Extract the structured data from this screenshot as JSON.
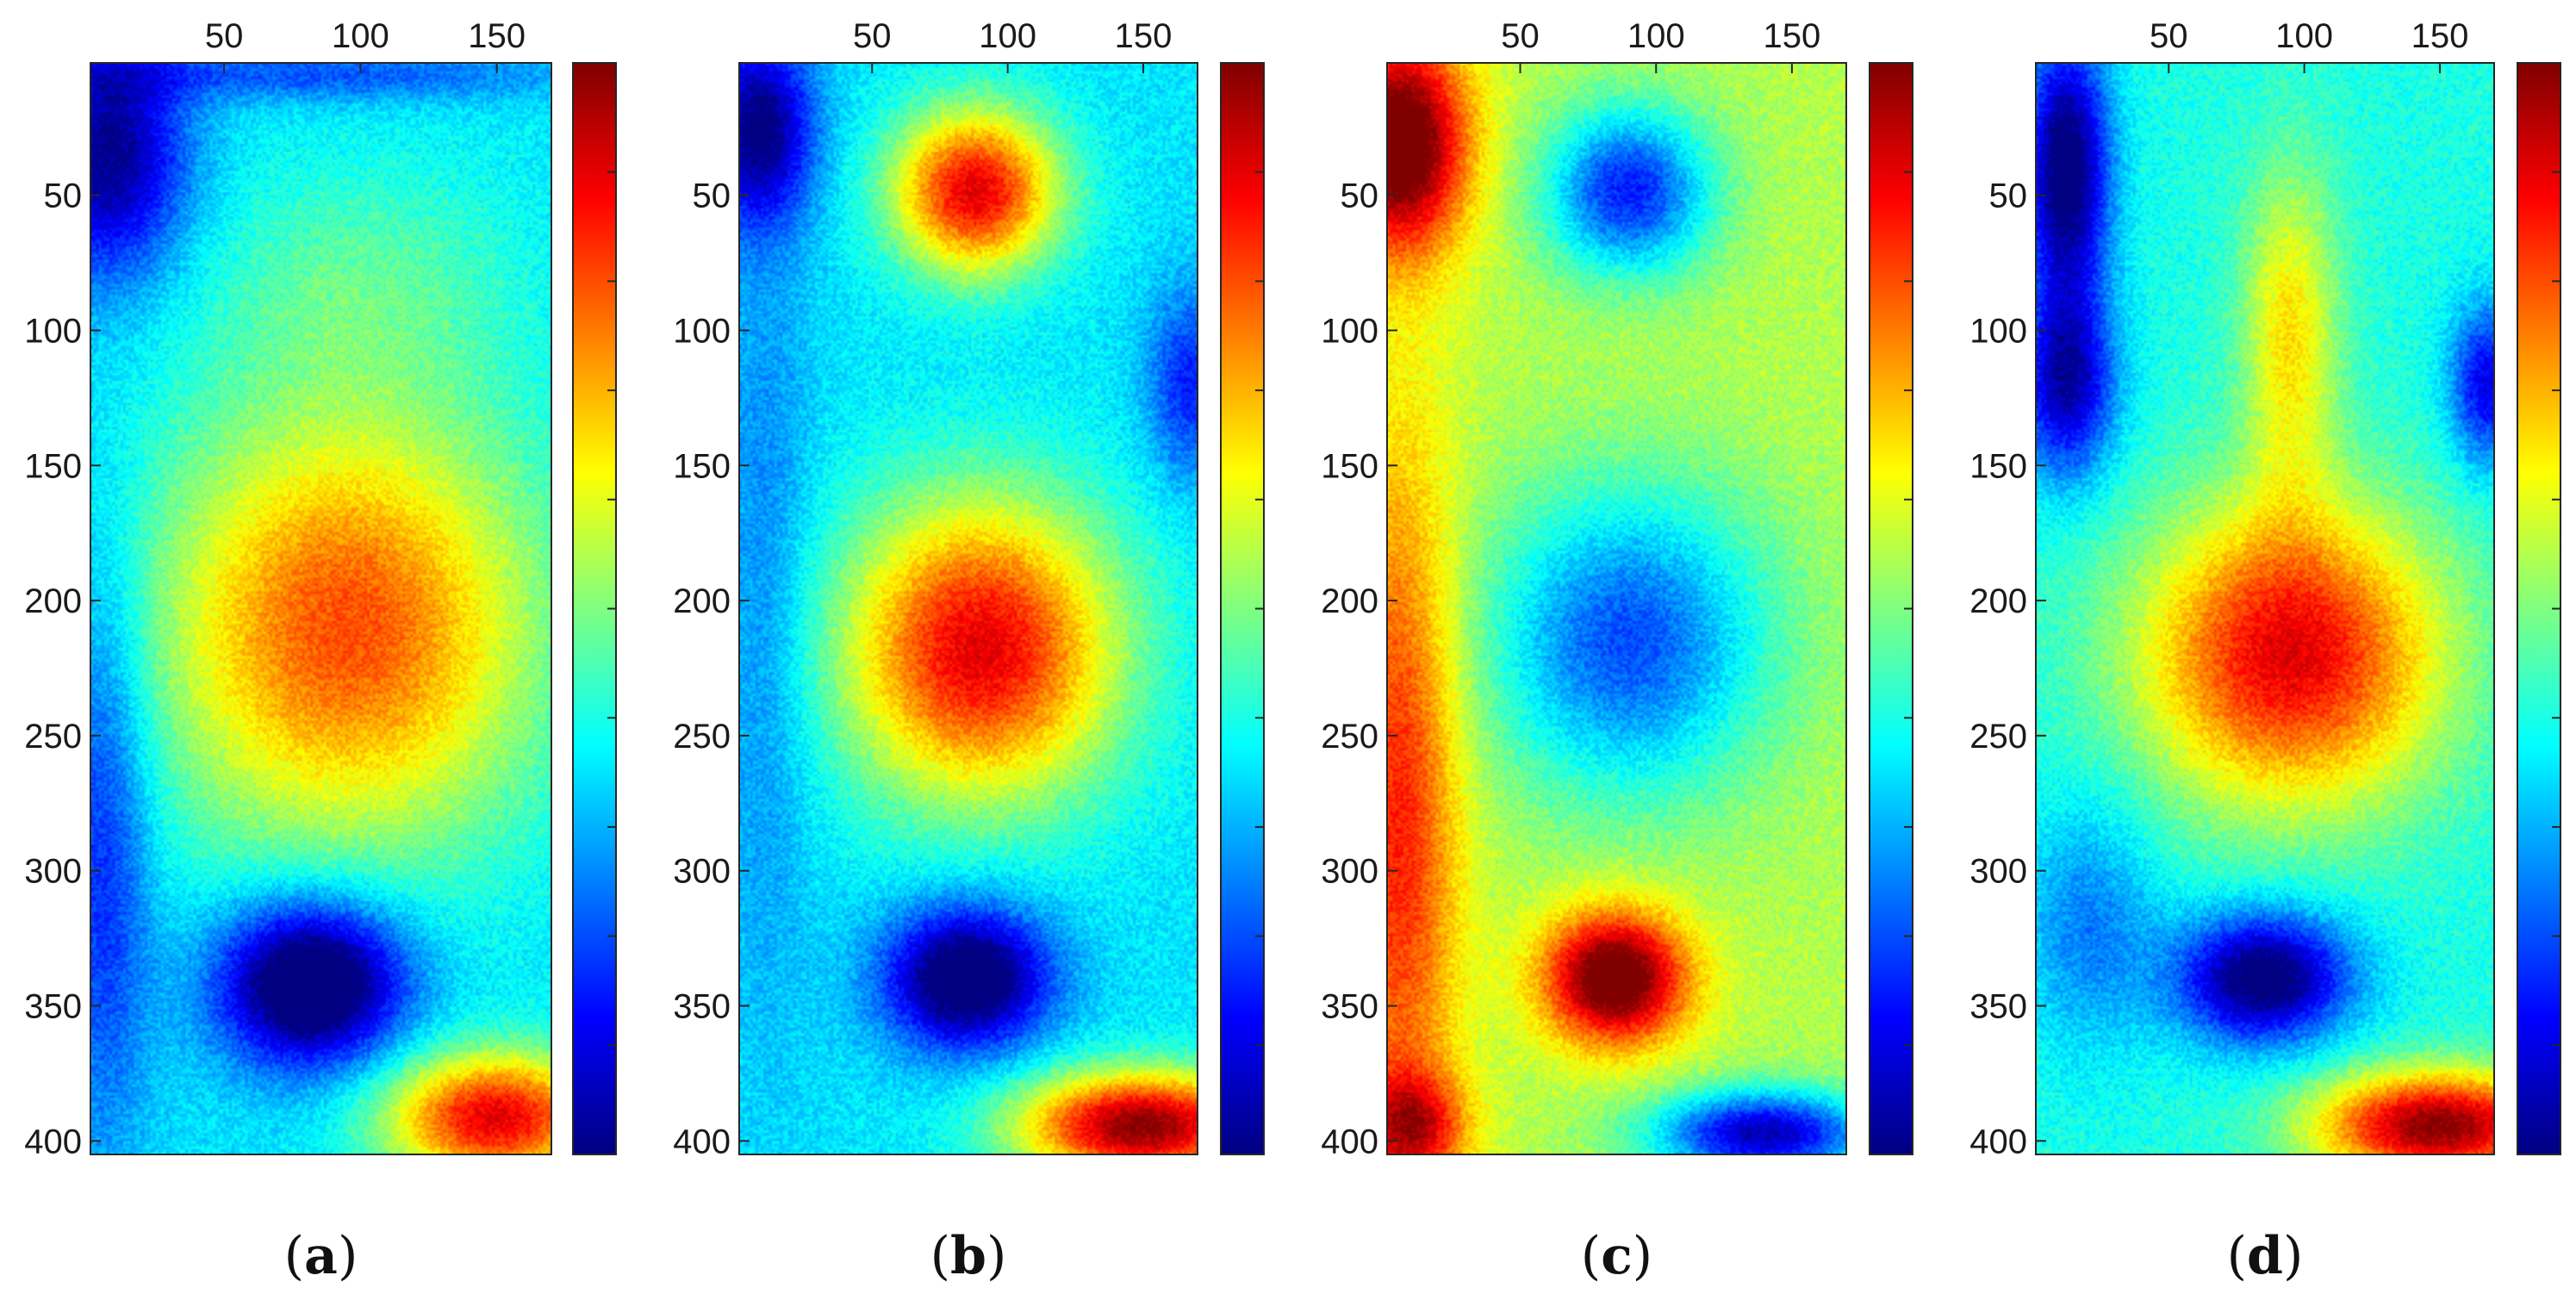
{
  "chart_data": [
    {
      "type": "heatmap",
      "label": "a",
      "x_ticks": [
        50,
        100,
        150
      ],
      "y_ticks": [
        50,
        100,
        150,
        200,
        250,
        300,
        350,
        400
      ],
      "x_range": [
        1,
        170
      ],
      "y_range": [
        1,
        405
      ],
      "colormap": "jet",
      "colorbar": true,
      "background": 0.35,
      "blobs": [
        {
          "x": 95,
          "y": 210,
          "sx": 70,
          "sy": 80,
          "v": 0.45
        },
        {
          "x": 100,
          "y": 80,
          "sx": 60,
          "sy": 45,
          "v": 0.1
        },
        {
          "x": 8,
          "y": 35,
          "sx": 28,
          "sy": 45,
          "v": -0.35
        },
        {
          "x": 85,
          "y": 5,
          "sx": 90,
          "sy": 10,
          "v": -0.15
        },
        {
          "x": 5,
          "y": 290,
          "sx": 18,
          "sy": 110,
          "v": -0.2
        },
        {
          "x": 82,
          "y": 342,
          "sx": 34,
          "sy": 30,
          "v": -0.5
        },
        {
          "x": 150,
          "y": 392,
          "sx": 40,
          "sy": 24,
          "v": 0.55
        }
      ]
    },
    {
      "type": "heatmap",
      "label": "b",
      "x_ticks": [
        50,
        100,
        150
      ],
      "y_ticks": [
        50,
        100,
        150,
        200,
        250,
        300,
        350,
        400
      ],
      "x_range": [
        1,
        170
      ],
      "y_range": [
        1,
        405
      ],
      "colormap": "jet",
      "colorbar": true,
      "background": 0.35,
      "blobs": [
        {
          "x": 88,
          "y": 48,
          "sx": 30,
          "sy": 30,
          "v": 0.55
        },
        {
          "x": 90,
          "y": 218,
          "sx": 50,
          "sy": 55,
          "v": 0.55
        },
        {
          "x": 85,
          "y": 340,
          "sx": 30,
          "sy": 26,
          "v": -0.45
        },
        {
          "x": 8,
          "y": 25,
          "sx": 20,
          "sy": 35,
          "v": -0.35
        },
        {
          "x": 168,
          "y": 120,
          "sx": 16,
          "sy": 35,
          "v": -0.2
        },
        {
          "x": 10,
          "y": 200,
          "sx": 18,
          "sy": 150,
          "v": -0.1
        },
        {
          "x": 150,
          "y": 395,
          "sx": 45,
          "sy": 20,
          "v": 0.65
        }
      ]
    },
    {
      "type": "heatmap",
      "label": "c",
      "x_ticks": [
        50,
        100,
        150
      ],
      "y_ticks": [
        50,
        100,
        150,
        200,
        250,
        300,
        350,
        400
      ],
      "x_range": [
        1,
        170
      ],
      "y_range": [
        1,
        405
      ],
      "colormap": "jet",
      "colorbar": true,
      "background": 0.55,
      "blobs": [
        {
          "x": 90,
          "y": 48,
          "sx": 30,
          "sy": 30,
          "v": -0.4
        },
        {
          "x": 90,
          "y": 215,
          "sx": 50,
          "sy": 55,
          "v": -0.35
        },
        {
          "x": 85,
          "y": 340,
          "sx": 26,
          "sy": 24,
          "v": 0.55
        },
        {
          "x": 5,
          "y": 30,
          "sx": 25,
          "sy": 40,
          "v": 0.55
        },
        {
          "x": 5,
          "y": 280,
          "sx": 22,
          "sy": 140,
          "v": 0.3
        },
        {
          "x": 10,
          "y": 395,
          "sx": 20,
          "sy": 20,
          "v": 0.3
        },
        {
          "x": 140,
          "y": 398,
          "sx": 40,
          "sy": 16,
          "v": -0.5
        }
      ]
    },
    {
      "type": "heatmap",
      "label": "d",
      "x_ticks": [
        50,
        100,
        150
      ],
      "y_ticks": [
        50,
        100,
        150,
        200,
        250,
        300,
        350,
        400
      ],
      "x_range": [
        1,
        170
      ],
      "y_range": [
        1,
        405
      ],
      "colormap": "jet",
      "colorbar": true,
      "background": 0.4,
      "blobs": [
        {
          "x": 95,
          "y": 220,
          "sx": 55,
          "sy": 55,
          "v": 0.5
        },
        {
          "x": 95,
          "y": 100,
          "sx": 18,
          "sy": 60,
          "v": 0.25
        },
        {
          "x": 12,
          "y": 40,
          "sx": 16,
          "sy": 50,
          "v": -0.45
        },
        {
          "x": 12,
          "y": 120,
          "sx": 18,
          "sy": 35,
          "v": -0.35
        },
        {
          "x": 168,
          "y": 120,
          "sx": 14,
          "sy": 30,
          "v": -0.3
        },
        {
          "x": 85,
          "y": 340,
          "sx": 32,
          "sy": 24,
          "v": -0.45
        },
        {
          "x": 20,
          "y": 320,
          "sx": 25,
          "sy": 45,
          "v": -0.15
        },
        {
          "x": 150,
          "y": 395,
          "sx": 45,
          "sy": 20,
          "v": 0.6
        }
      ]
    }
  ]
}
